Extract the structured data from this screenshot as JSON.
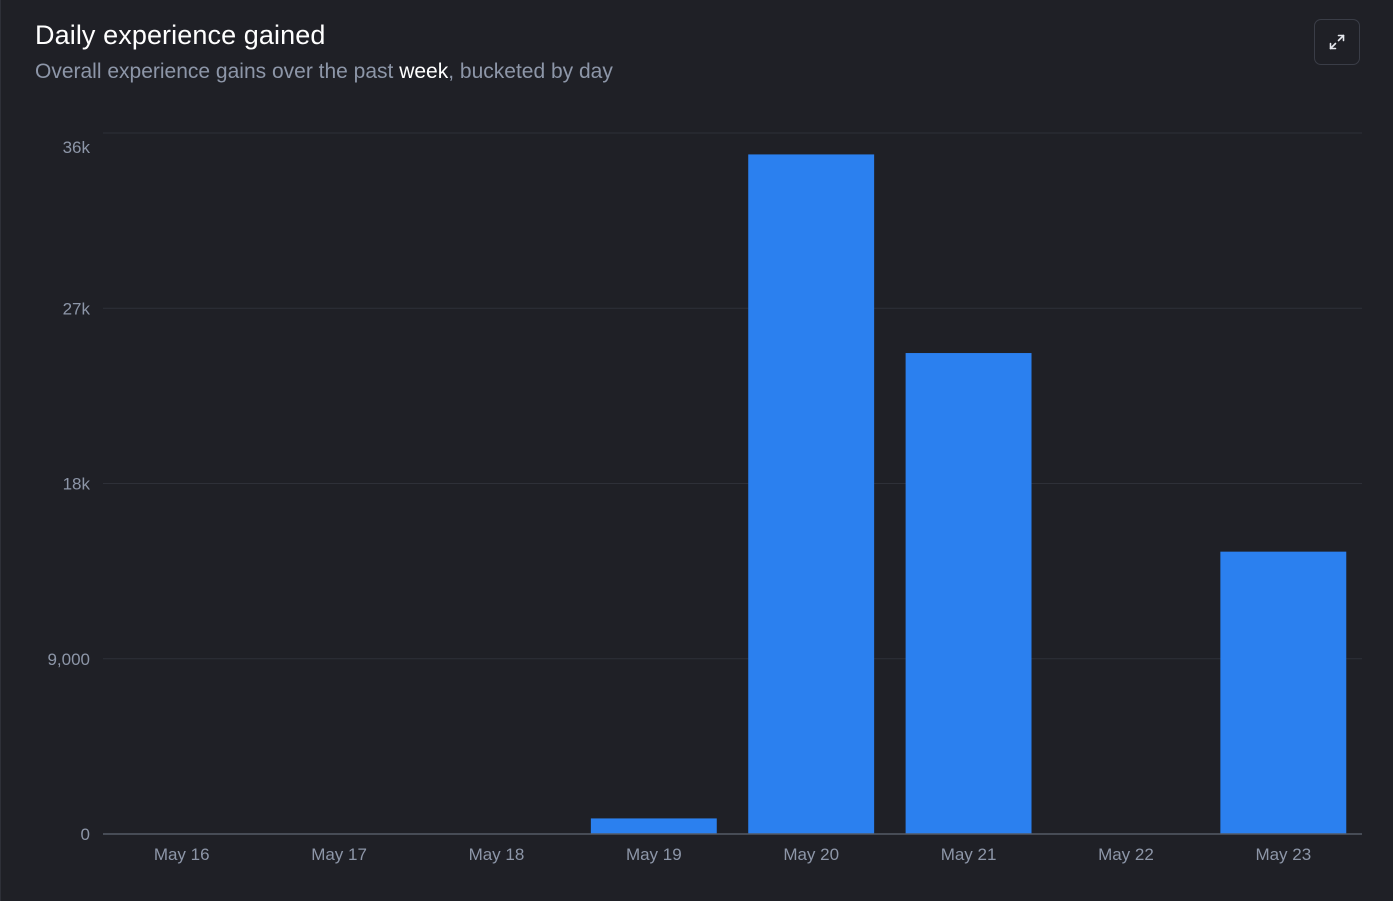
{
  "header": {
    "title": "Daily experience gained",
    "subtitle_before": "Overall experience gains over the past ",
    "subtitle_highlight": "week",
    "subtitle_after": ", bucketed by day"
  },
  "toolbar": {
    "expand_icon": "expand-arrows-icon"
  },
  "colors": {
    "background": "#1f2026",
    "bar": "#2b80ef",
    "grid": "#2e3038",
    "axis_text": "#8d96a8",
    "title": "#ffffff"
  },
  "chart_data": {
    "type": "bar",
    "categories": [
      "May 16",
      "May 17",
      "May 18",
      "May 19",
      "May 20",
      "May 21",
      "May 22",
      "May 23"
    ],
    "values": [
      0,
      0,
      0,
      800,
      34900,
      24700,
      0,
      14500
    ],
    "y_ticks": [
      0,
      9000,
      18000,
      27000,
      36000
    ],
    "y_tick_labels": [
      "0",
      "9,000",
      "18k",
      "27k",
      "36k"
    ],
    "ylim": [
      0,
      36000
    ],
    "grid": true,
    "legend": "none",
    "xlabel": "",
    "ylabel": ""
  }
}
